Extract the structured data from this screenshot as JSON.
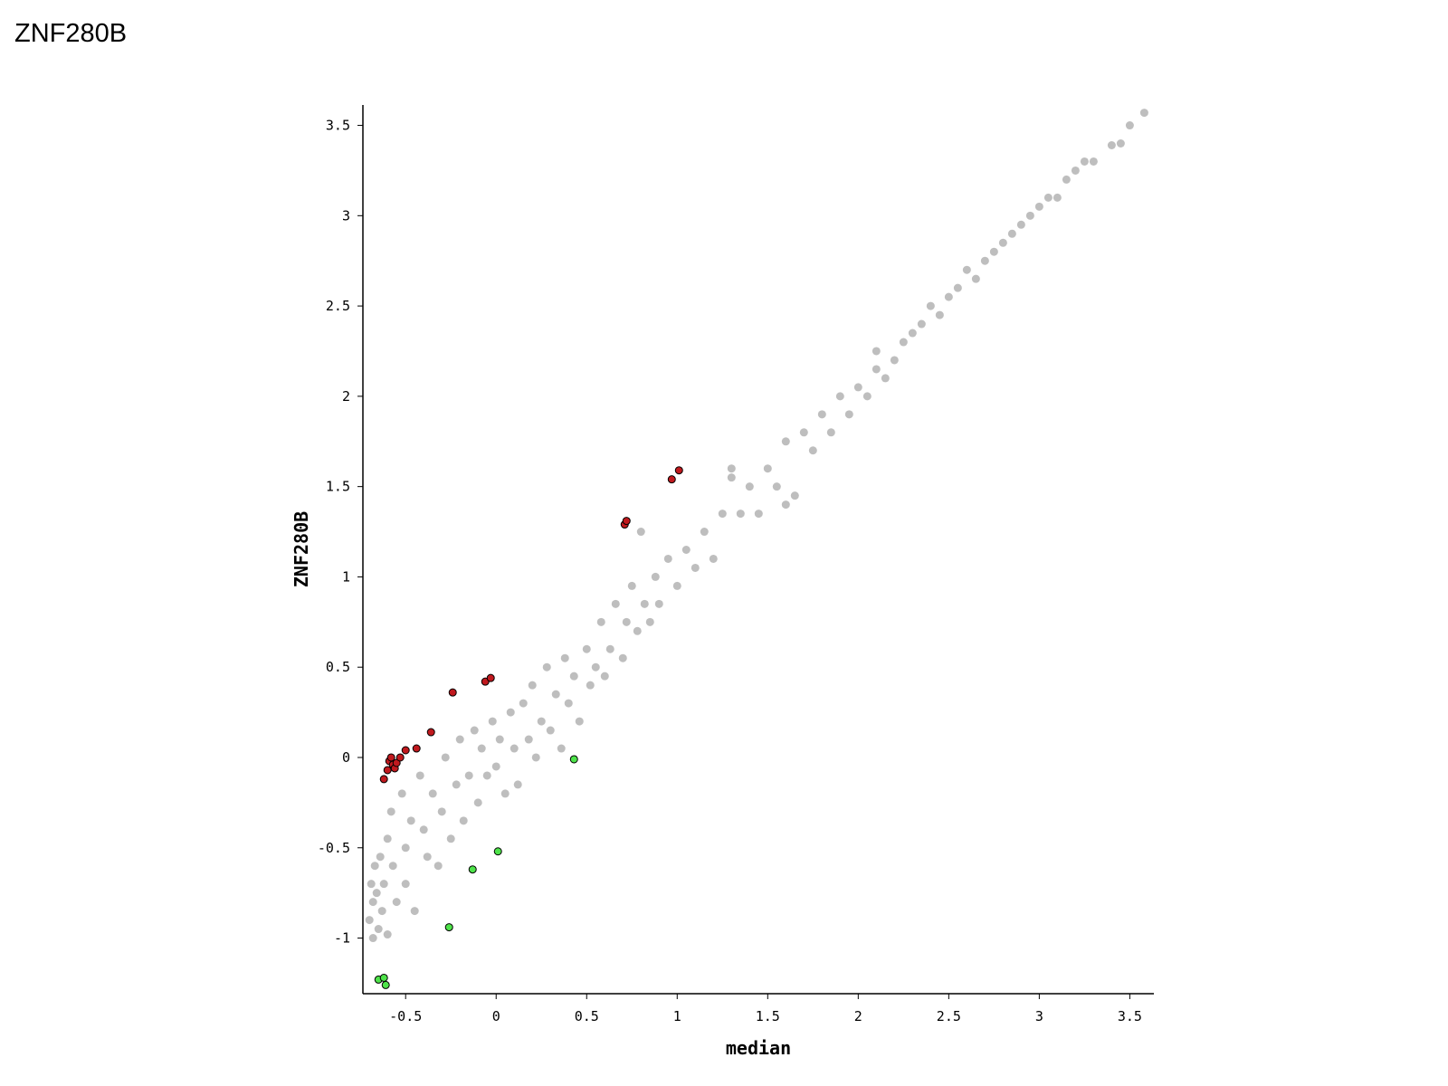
{
  "title": "ZNF280B",
  "chart_data": {
    "type": "scatter",
    "xlabel": "median",
    "ylabel": "ZNF280B",
    "xlim": [
      -0.736,
      3.633
    ],
    "ylim": [
      -1.308,
      3.613
    ],
    "xticks": [
      -0.5,
      0,
      0.5,
      1,
      1.5,
      2,
      2.5,
      3,
      3.5
    ],
    "yticks": [
      -1,
      -0.5,
      0,
      0.5,
      1,
      1.5,
      2,
      2.5,
      3,
      3.5
    ],
    "series": [
      {
        "color": "#bebebe",
        "x": [
          -0.7,
          -0.69,
          -0.68,
          -0.68,
          -0.67,
          -0.66,
          -0.65,
          -0.64,
          -0.63,
          -0.62,
          -0.6,
          -0.6,
          -0.58,
          -0.57,
          -0.55,
          -0.52,
          -0.5,
          -0.5,
          -0.47,
          -0.45,
          -0.42,
          -0.4,
          -0.38,
          -0.35,
          -0.32,
          -0.3,
          -0.28,
          -0.25,
          -0.22,
          -0.2,
          -0.18,
          -0.15,
          -0.12,
          -0.1,
          -0.08,
          -0.05,
          -0.02,
          0,
          0.02,
          0.05,
          0.08,
          0.1,
          0.12,
          0.15,
          0.18,
          0.2,
          0.22,
          0.25,
          0.28,
          0.3,
          0.33,
          0.36,
          0.38,
          0.4,
          0.43,
          0.46,
          0.5,
          0.52,
          0.55,
          0.58,
          0.6,
          0.63,
          0.66,
          0.7,
          0.72,
          0.75,
          0.78,
          0.8,
          0.82,
          0.85,
          0.88,
          0.9,
          0.95,
          1,
          1.05,
          1.1,
          1.15,
          1.2,
          1.25,
          1.3,
          1.35,
          1.4,
          1.45,
          1.5,
          1.55,
          1.6,
          1.65,
          1.7,
          1.75,
          1.8,
          1.85,
          1.9,
          1.95,
          2,
          2.05,
          2.1,
          2.15,
          2.2,
          2.25,
          2.3,
          2.35,
          2.4,
          2.45,
          2.5,
          2.55,
          2.6,
          2.65,
          2.7,
          2.75,
          2.8,
          2.85,
          2.9,
          2.95,
          3,
          3.05,
          3.1,
          3.15,
          3.2,
          3.25,
          3.3,
          3.4,
          3.45,
          3.5,
          3.58,
          2.1,
          1.3,
          1.6
        ],
        "y": [
          -0.9,
          -0.7,
          -0.8,
          -1,
          -0.6,
          -0.75,
          -0.95,
          -0.55,
          -0.85,
          -0.7,
          -0.45,
          -0.98,
          -0.3,
          -0.6,
          -0.8,
          -0.2,
          -0.5,
          -0.7,
          -0.35,
          -0.85,
          -0.1,
          -0.4,
          -0.55,
          -0.2,
          -0.6,
          -0.3,
          0,
          -0.45,
          -0.15,
          0.1,
          -0.35,
          -0.1,
          0.15,
          -0.25,
          0.05,
          -0.1,
          0.2,
          -0.05,
          0.1,
          -0.2,
          0.25,
          0.05,
          -0.15,
          0.3,
          0.1,
          0.4,
          0,
          0.2,
          0.5,
          0.15,
          0.35,
          0.05,
          0.55,
          0.3,
          0.45,
          0.2,
          0.6,
          0.4,
          0.5,
          0.75,
          0.45,
          0.6,
          0.85,
          0.55,
          0.75,
          0.95,
          0.7,
          1.25,
          0.85,
          0.75,
          1,
          0.85,
          1.1,
          0.95,
          1.15,
          1.05,
          1.25,
          1.1,
          1.35,
          1.55,
          1.35,
          1.5,
          1.35,
          1.6,
          1.5,
          1.75,
          1.45,
          1.8,
          1.7,
          1.9,
          1.8,
          2,
          1.9,
          2.05,
          2,
          2.15,
          2.1,
          2.2,
          2.3,
          2.35,
          2.4,
          2.5,
          2.45,
          2.55,
          2.6,
          2.7,
          2.65,
          2.75,
          2.8,
          2.85,
          2.9,
          2.95,
          3,
          3.05,
          3.1,
          3.1,
          3.2,
          3.25,
          3.3,
          3.3,
          3.39,
          3.4,
          3.5,
          3.57,
          2.25,
          1.6,
          1.4
        ]
      },
      {
        "color": "#c0191e",
        "x": [
          -0.62,
          -0.6,
          -0.59,
          -0.58,
          -0.57,
          -0.56,
          -0.55,
          -0.53,
          -0.5,
          -0.44,
          -0.36,
          -0.24,
          -0.06,
          -0.03,
          0.71,
          0.72,
          0.97,
          1.01
        ],
        "y": [
          -0.12,
          -0.07,
          -0.02,
          0,
          -0.04,
          -0.06,
          -0.03,
          0,
          0.04,
          0.05,
          0.14,
          0.36,
          0.42,
          0.44,
          1.29,
          1.31,
          1.54,
          1.59
        ]
      },
      {
        "color": "#4ee34a",
        "x": [
          0.43,
          0.01,
          -0.13,
          -0.26,
          -0.65,
          -0.62,
          -0.61
        ],
        "y": [
          -0.01,
          -0.52,
          -0.62,
          -0.94,
          -1.23,
          -1.22,
          -1.26
        ]
      }
    ]
  }
}
